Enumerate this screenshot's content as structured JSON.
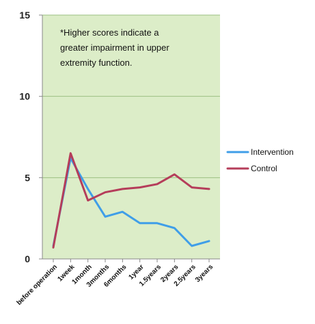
{
  "chart_data": {
    "type": "line",
    "categories": [
      "before operation",
      "1week",
      "1month",
      "3months",
      "6months",
      "1year",
      "1.5years",
      "2years",
      "2.5years",
      "3years"
    ],
    "series": [
      {
        "name": "Intervention",
        "color": "#3f9ee8",
        "values": [
          0.8,
          6.2,
          4.3,
          2.6,
          2.9,
          2.2,
          2.2,
          1.9,
          0.8,
          1.1
        ]
      },
      {
        "name": "Control",
        "color": "#b53d5a",
        "values": [
          0.7,
          6.5,
          3.6,
          4.1,
          4.3,
          4.4,
          4.6,
          5.2,
          4.4,
          4.3
        ]
      }
    ],
    "ylim": [
      0,
      15
    ],
    "yticks": [
      0,
      5,
      10,
      15
    ],
    "grid": true,
    "plot_background": "#dcedc8",
    "gridline_color": "#9bbf82",
    "legend_position": "right",
    "annotation_lines": [
      "*Higher scores indicate a",
      "greater impairment in upper",
      "extremity function."
    ]
  }
}
